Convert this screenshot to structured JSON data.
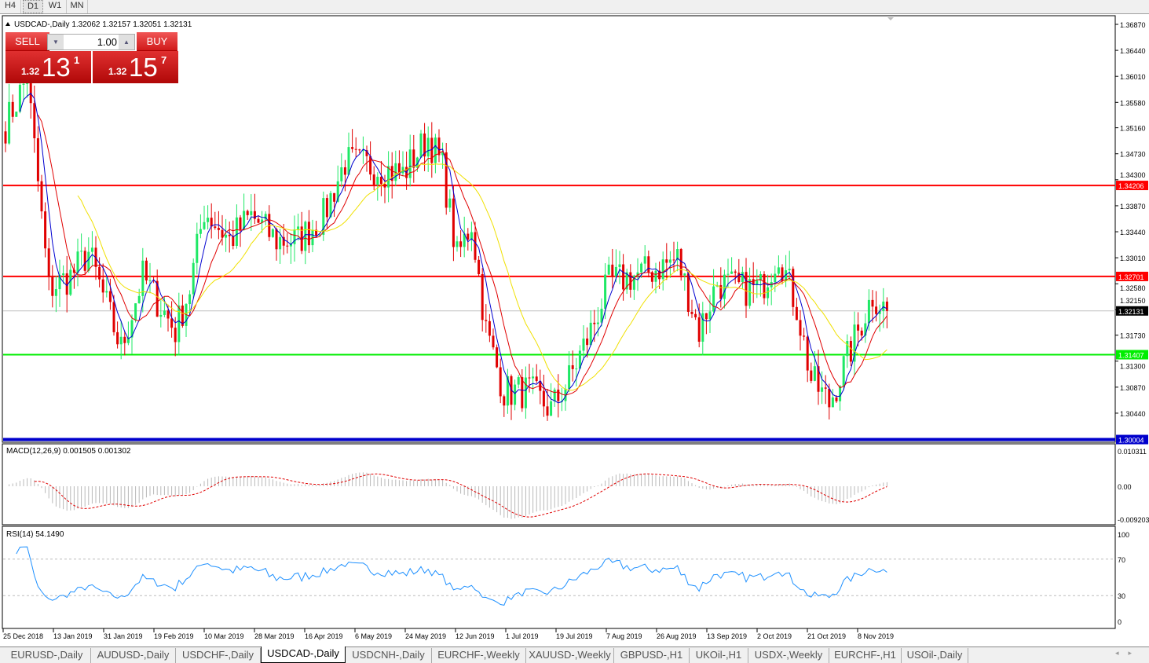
{
  "timeframes": [
    {
      "label": "H4"
    },
    {
      "label": "D1",
      "active": true
    },
    {
      "label": "W1"
    },
    {
      "label": "MN"
    }
  ],
  "chart": {
    "header": "USDCAD-,Daily  1.32062 1.32157 1.32051 1.32131",
    "symbol": "USDCAD-,Daily",
    "ohlc": {
      "open": "1.32062",
      "high": "1.32157",
      "low": "1.32051",
      "close": "1.32131"
    },
    "colors": {
      "bull": "#1ee865",
      "bear": "#e00000",
      "ma_fast": "#0000d0",
      "ma_mid": "#e00000",
      "ma_slow": "#f0e000",
      "background": "#ffffff"
    },
    "price_axis": [
      "1.36870",
      "1.36440",
      "1.36010",
      "1.35580",
      "1.35160",
      "1.34730",
      "1.34300",
      "1.33870",
      "1.33440",
      "1.33010",
      "1.32580",
      "1.32150",
      "1.31730",
      "1.31300",
      "1.30870",
      "1.30440"
    ],
    "levels": [
      {
        "price": "1.34206",
        "color": "#ff0000"
      },
      {
        "price": "1.32701",
        "color": "#ff0000"
      },
      {
        "price": "1.32131",
        "color": "#000000",
        "current": true
      },
      {
        "price": "1.31407",
        "color": "#00ee00"
      },
      {
        "price": "1.30004",
        "color": "#0000cc"
      }
    ],
    "date_axis": [
      "25 Dec 2018",
      "13 Jan 2019",
      "31 Jan 2019",
      "19 Feb 2019",
      "10 Mar 2019",
      "28 Mar 2019",
      "16 Apr 2019",
      "6 May 2019",
      "24 May 2019",
      "12 Jun 2019",
      "1 Jul 2019",
      "19 Jul 2019",
      "7 Aug 2019",
      "26 Aug 2019",
      "13 Sep 2019",
      "2 Oct 2019",
      "21 Oct 2019",
      "8 Nov 2019"
    ],
    "price_path": [
      [
        0,
        1.352
      ],
      [
        6,
        1.36
      ],
      [
        12,
        1.325
      ],
      [
        18,
        1.327
      ],
      [
        23,
        1.331
      ],
      [
        32,
        1.315
      ],
      [
        38,
        1.327
      ],
      [
        47,
        1.318
      ],
      [
        51,
        1.325
      ],
      [
        55,
        1.338
      ],
      [
        62,
        1.333
      ],
      [
        68,
        1.337
      ],
      [
        75,
        1.333
      ],
      [
        81,
        1.333
      ],
      [
        88,
        1.337
      ],
      [
        94,
        1.346
      ],
      [
        103,
        1.345
      ],
      [
        110,
        1.344
      ],
      [
        117,
        1.35
      ],
      [
        121,
        1.345
      ],
      [
        125,
        1.33
      ],
      [
        129,
        1.336
      ],
      [
        133,
        1.318
      ],
      [
        138,
        1.308
      ],
      [
        145,
        1.308
      ],
      [
        151,
        1.305
      ],
      [
        156,
        1.31
      ],
      [
        162,
        1.318
      ],
      [
        167,
        1.326
      ],
      [
        173,
        1.327
      ],
      [
        179,
        1.328
      ],
      [
        186,
        1.33
      ],
      [
        190,
        1.322
      ],
      [
        192,
        1.318
      ],
      [
        197,
        1.326
      ],
      [
        203,
        1.325
      ],
      [
        209,
        1.325
      ],
      [
        214,
        1.331
      ],
      [
        219,
        1.322
      ],
      [
        223,
        1.31
      ],
      [
        228,
        1.306
      ],
      [
        232,
        1.312
      ],
      [
        236,
        1.318
      ],
      [
        240,
        1.324
      ],
      [
        244,
        1.3213
      ]
    ],
    "trade_panel": {
      "sell": "SELL",
      "buy": "BUY",
      "lot": "1.00",
      "sell_prefix": "1.32",
      "sell_big": "13",
      "sell_sup": "1",
      "buy_prefix": "1.32",
      "buy_big": "15",
      "buy_sup": "7"
    }
  },
  "macd": {
    "label": "MACD(12,26,9) 0.001505 0.001302",
    "axis": [
      "0.010311",
      "0.00",
      "-0.009203"
    ]
  },
  "rsi": {
    "label": "RSI(14) 54.1490",
    "axis": [
      "100",
      "70",
      "30",
      "0"
    ]
  },
  "tabs": [
    {
      "label": "EURUSD-,Daily"
    },
    {
      "label": "AUDUSD-,Daily"
    },
    {
      "label": "USDCHF-,Daily"
    },
    {
      "label": "USDCAD-,Daily",
      "active": true
    },
    {
      "label": "USDCNH-,Daily"
    },
    {
      "label": "EURCHF-,Weekly"
    },
    {
      "label": "XAUUSD-,Weekly"
    },
    {
      "label": "GBPUSD-,H1"
    },
    {
      "label": "UKOil-,H1"
    },
    {
      "label": "USDX-,Weekly"
    },
    {
      "label": "EURCHF-,H1"
    },
    {
      "label": "USOil-,Daily"
    }
  ]
}
